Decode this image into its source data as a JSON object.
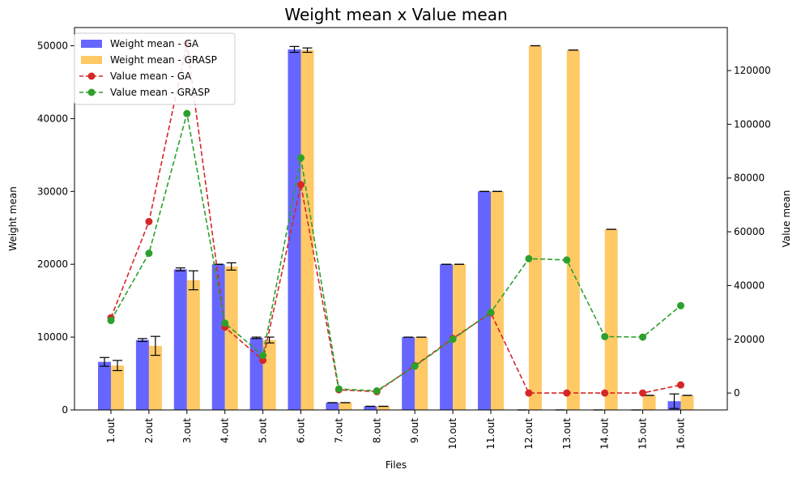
{
  "chart_data": {
    "type": "bar",
    "title": "Weight mean x Value mean",
    "xlabel": "Files",
    "ylabel": "Weight mean",
    "y2label": "Value mean",
    "categories": [
      "1.out",
      "2.out",
      "3.out",
      "4.out",
      "5.out",
      "6.out",
      "7.out",
      "8.out",
      "9.out",
      "10.out",
      "11.out",
      "12.out",
      "13.out",
      "14.out",
      "15.out",
      "16.out"
    ],
    "ylim": [
      0,
      52500
    ],
    "y2lim": [
      -6300,
      136000
    ],
    "yticks": [
      0,
      10000,
      20000,
      30000,
      40000,
      50000
    ],
    "y2ticks": [
      0,
      20000,
      40000,
      60000,
      80000,
      100000,
      120000
    ],
    "legend_position": "top-left",
    "bar_series": [
      {
        "name": "Weight mean - GA",
        "color": "#4b4bff",
        "values": [
          6600,
          9600,
          19300,
          20000,
          9900,
          49500,
          1000,
          500,
          10000,
          20000,
          30000,
          0,
          0,
          0,
          0,
          1200
        ],
        "errors": [
          600,
          200,
          200,
          0,
          100,
          400,
          0,
          0,
          0,
          0,
          0,
          0,
          0,
          0,
          0,
          1000
        ]
      },
      {
        "name": "Weight mean - GRASP",
        "color": "#ffbf4b",
        "values": [
          6100,
          8800,
          17800,
          19700,
          9600,
          49400,
          1000,
          500,
          10000,
          20000,
          30000,
          50000,
          49400,
          24800,
          2000,
          2000
        ],
        "errors": [
          700,
          1300,
          1300,
          500,
          400,
          300,
          0,
          0,
          0,
          0,
          0,
          0,
          0,
          0,
          0,
          0
        ]
      }
    ],
    "line_series": [
      {
        "name": "Value mean - GA",
        "color": "#d62728",
        "values": [
          28000,
          63800,
          130000,
          24500,
          12200,
          77500,
          1200,
          500,
          10200,
          20300,
          29800,
          0,
          0,
          0,
          0,
          3000
        ]
      },
      {
        "name": "Value mean - GRASP",
        "color": "#2ca02c",
        "values": [
          27000,
          52000,
          104000,
          26000,
          14000,
          87500,
          1500,
          800,
          10000,
          20000,
          30000,
          50000,
          49500,
          21000,
          20800,
          32500
        ]
      }
    ]
  }
}
